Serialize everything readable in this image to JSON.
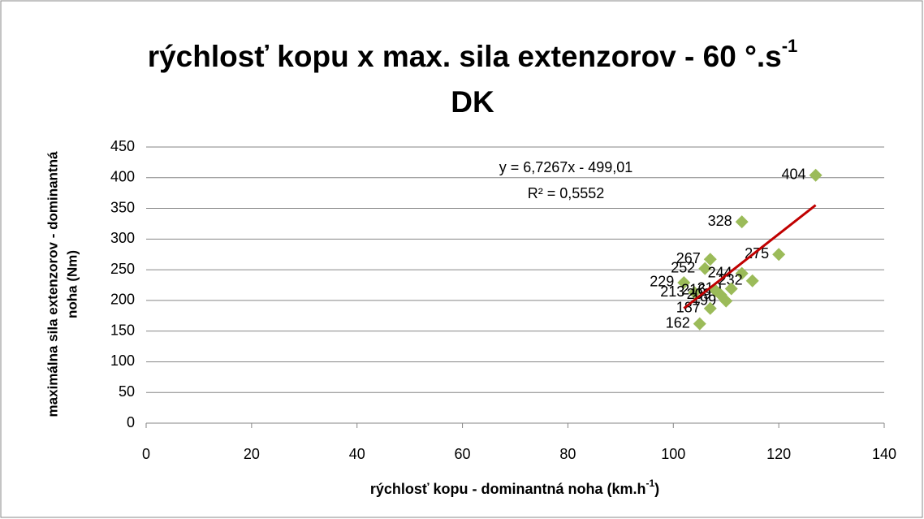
{
  "chart_data": {
    "type": "scatter",
    "title": {
      "text": "rýchlosť kopu x max. sila extenzorov - 60 °.s",
      "sup": "-1",
      "line2": "DK"
    },
    "x_label": {
      "text": "rýchlosť kopu - dominantná noha (km.h",
      "sup": "-1",
      "end": ")"
    },
    "y_label": [
      "maximálna sila extenzorov - dominantná",
      "noha (Nm)"
    ],
    "x": [
      127,
      113,
      120,
      107,
      106,
      113,
      115,
      102,
      111,
      104,
      108,
      110,
      107,
      105,
      109
    ],
    "y": [
      404,
      328,
      275,
      267,
      252,
      244,
      232,
      229,
      219,
      213,
      216,
      199,
      187,
      162,
      209
    ],
    "color": "#9bbb59",
    "xlim": [
      0,
      140
    ],
    "xticks": [
      0,
      20,
      40,
      60,
      80,
      100,
      120,
      140
    ],
    "ylim": [
      0,
      450
    ],
    "yticks": [
      0,
      50,
      100,
      150,
      200,
      250,
      300,
      350,
      400,
      450
    ],
    "grid": true,
    "trendline": {
      "slope": 6.7267,
      "intercept": -499.01,
      "x_range": [
        102,
        127
      ],
      "color": "#c00000",
      "equation": "y = 6,7267x - 499,01",
      "r2": "R² = 0,5552"
    }
  }
}
